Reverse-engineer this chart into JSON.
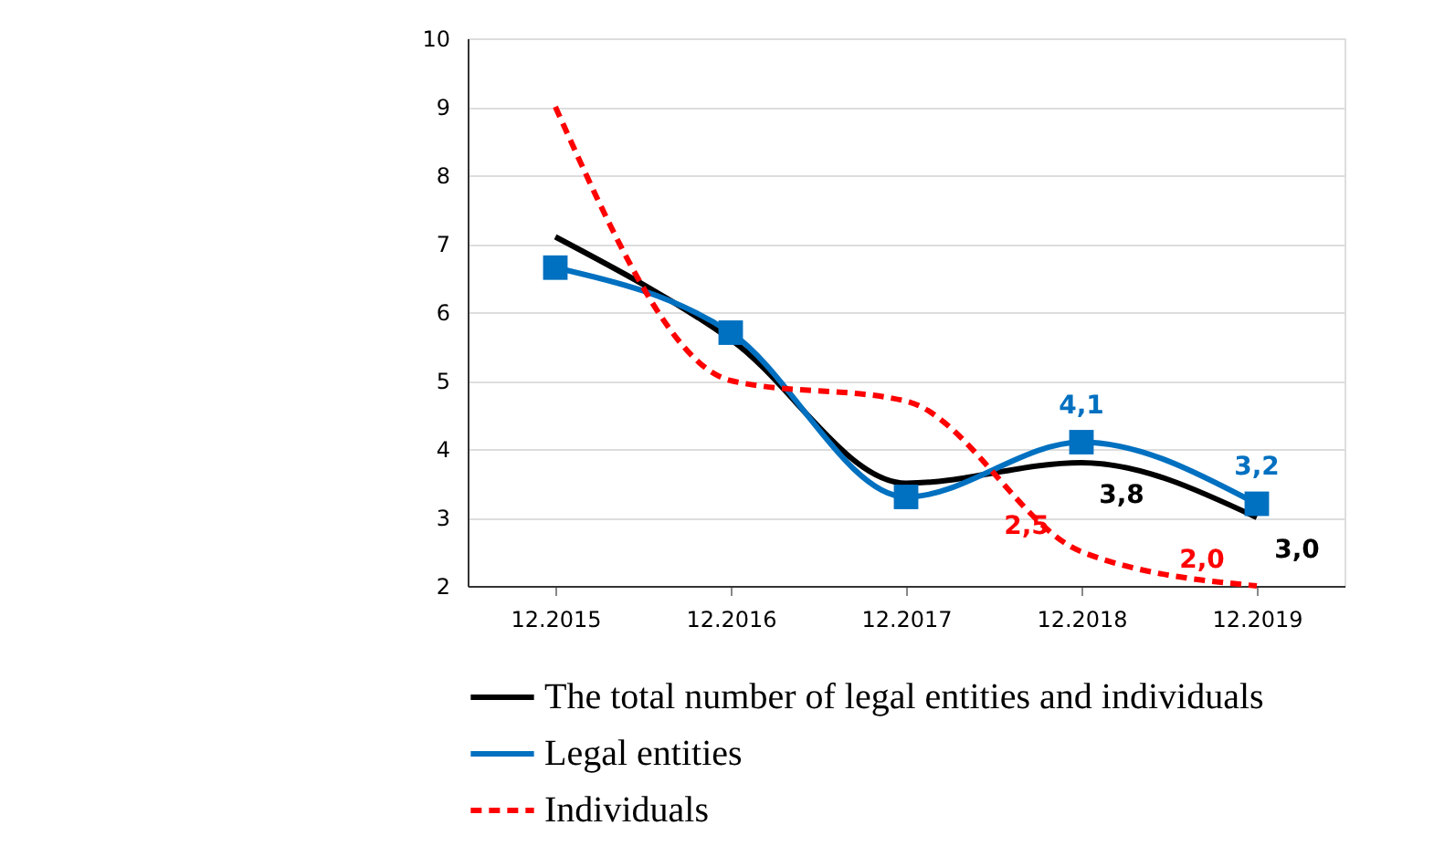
{
  "chart_data": {
    "type": "line",
    "categories": [
      "12.2015",
      "12.2016",
      "12.2017",
      "12.2018",
      "12.2019"
    ],
    "series": [
      {
        "name": "The total number of legal entities and individuals",
        "color": "#000000",
        "values": [
          7.1,
          5.6,
          3.5,
          3.8,
          3.0
        ],
        "value_labels": [
          null,
          null,
          null,
          "3,8",
          "3,0"
        ],
        "line_style": "solid",
        "marker": "none"
      },
      {
        "name": "Legal entities",
        "color": "#0070c0",
        "values": [
          6.65,
          5.7,
          3.3,
          4.1,
          3.2
        ],
        "value_labels": [
          null,
          null,
          null,
          "4,1",
          "3,2"
        ],
        "line_style": "solid",
        "marker": "square"
      },
      {
        "name": "Individuals",
        "color": "#ff0000",
        "values": [
          9.0,
          5.0,
          4.7,
          2.5,
          2.0
        ],
        "value_labels": [
          null,
          null,
          null,
          "2,5",
          "2,0"
        ],
        "line_style": "dashed",
        "marker": "none"
      }
    ],
    "ylim": [
      2,
      10
    ],
    "yticks": [
      2,
      3,
      4,
      5,
      6,
      7,
      8,
      9,
      10
    ],
    "grid": "y",
    "legend": "bottom"
  }
}
